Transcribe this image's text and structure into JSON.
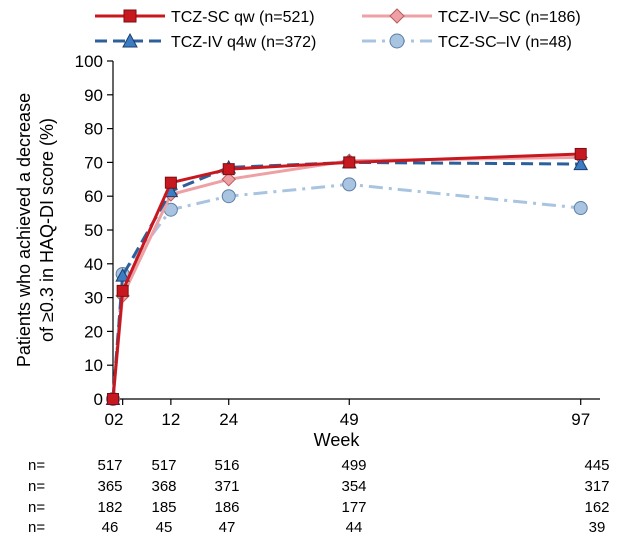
{
  "chart_data": {
    "type": "line",
    "ylabel": "Patients who achieved a decrease of ≥0.3 in HAQ-DI score (%)",
    "ylabel_lines": [
      "Patients who achieved a decrease",
      "of ≥0.3 in HAQ-DI score (%)"
    ],
    "xlabel": "Week",
    "ylim": [
      0,
      100
    ],
    "yticks": [
      0,
      10,
      20,
      30,
      40,
      50,
      60,
      70,
      80,
      90,
      100
    ],
    "xticks": [
      {
        "value": 0,
        "label": "0"
      },
      {
        "value": 2,
        "label": "2"
      },
      {
        "value": 12,
        "label": "12"
      },
      {
        "value": 24,
        "label": "24"
      },
      {
        "value": 49,
        "label": "49"
      },
      {
        "value": 97,
        "label": "97"
      }
    ],
    "legend_placement": "top",
    "series": [
      {
        "name": "TCZ-SC qw (n=521)",
        "color": "#c8181f",
        "dash": "solid",
        "marker": "square",
        "x": [
          0,
          2,
          12,
          24,
          49,
          97
        ],
        "y": [
          0,
          32,
          64,
          68,
          70,
          72.5
        ]
      },
      {
        "name": "TCZ-IV–SC (n=186)",
        "color": "#eda1a4",
        "dash": "solid",
        "marker": "diamond",
        "x": [
          0,
          2,
          12,
          24,
          49,
          97
        ],
        "y": [
          0,
          30.5,
          60.5,
          65,
          70.5,
          71.5
        ]
      },
      {
        "name": "TCZ-IV q4w (n=372)",
        "color": "#2d5f9a",
        "dash": "dash",
        "marker": "triangle",
        "x": [
          0,
          2,
          12,
          24,
          49,
          97
        ],
        "y": [
          0,
          36.5,
          61.5,
          68.5,
          70,
          69.5
        ]
      },
      {
        "name": "TCZ-SC–IV (n=48)",
        "color": "#a9c4e0",
        "dash": "dashdot",
        "marker": "circle",
        "x": [
          0,
          2,
          12,
          24,
          49,
          97
        ],
        "y": [
          0,
          37,
          56,
          60,
          63.5,
          56.5
        ]
      }
    ],
    "n_table": {
      "prefix": "n=",
      "rows": [
        [
          "517",
          "517",
          "516",
          "499",
          "445"
        ],
        [
          "365",
          "368",
          "371",
          "354",
          "317"
        ],
        [
          "182",
          "185",
          "186",
          "177",
          "162"
        ],
        [
          "46",
          "45",
          "47",
          "44",
          "39"
        ]
      ]
    }
  }
}
